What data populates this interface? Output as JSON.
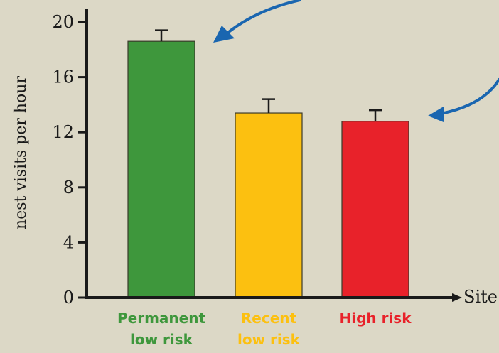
{
  "chart_data": {
    "type": "bar",
    "categories": [
      [
        "Permanent",
        "low risk"
      ],
      [
        "Recent",
        "low risk"
      ],
      [
        "High risk"
      ]
    ],
    "values": [
      18.6,
      13.4,
      12.8
    ],
    "errors": [
      0.8,
      1.0,
      0.8
    ],
    "bar_colors": [
      "#3e973c",
      "#fcc010",
      "#e8222a"
    ],
    "label_colors": [
      "#3e973c",
      "#fcc010",
      "#e8222a"
    ],
    "ylabel": "nest visits per hour",
    "xlabel": "Site",
    "ylim": [
      0,
      20
    ],
    "yticks": [
      0,
      4,
      8,
      12,
      16,
      20
    ],
    "arrow_color": "#1a66b0"
  }
}
